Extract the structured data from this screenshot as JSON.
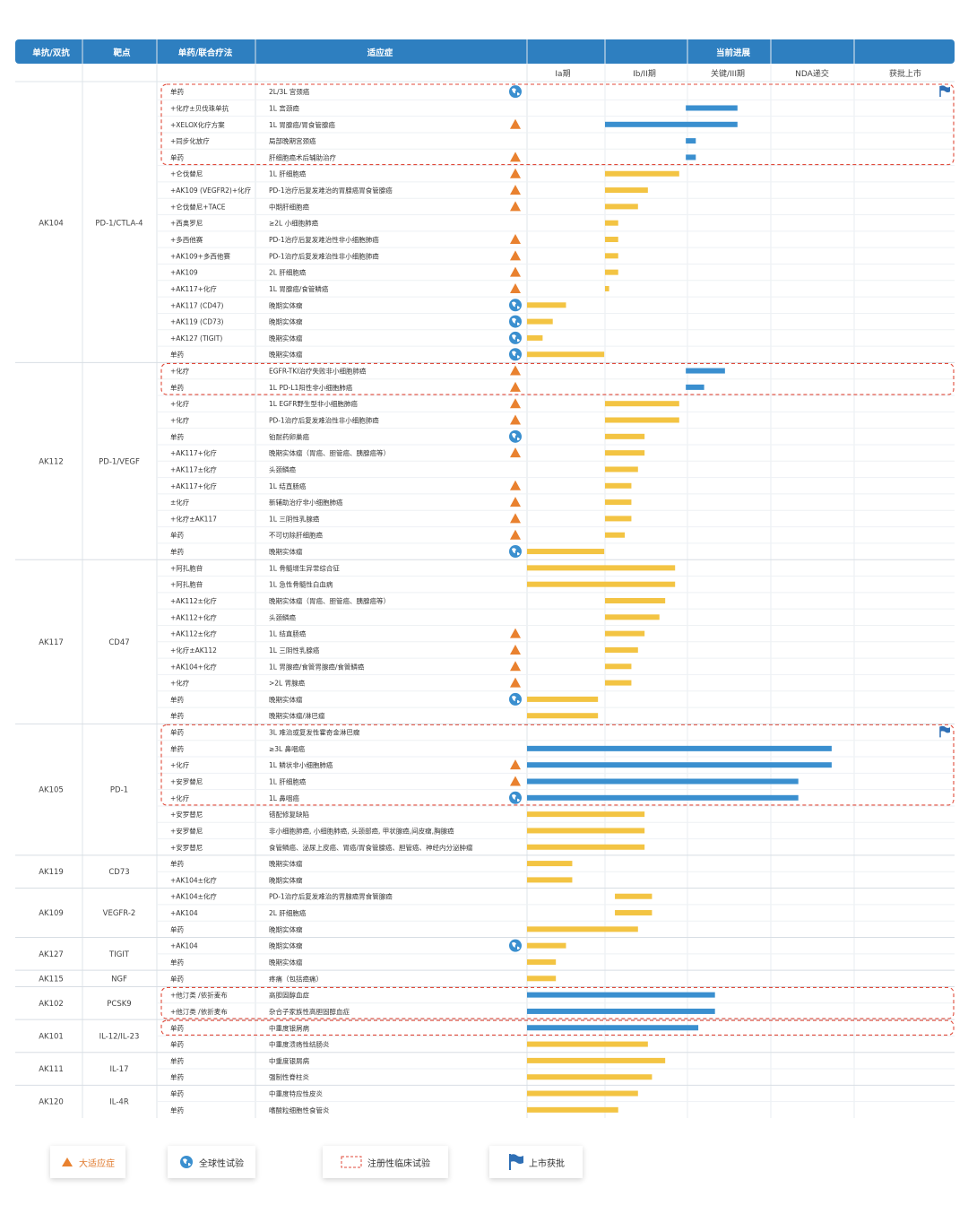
{
  "header": {
    "columns": [
      "单抗/双抗",
      "靶点",
      "单药/联合疗法",
      "适应症",
      "当前进展"
    ],
    "phases": [
      "Ia期",
      "Ib/II期",
      "关键/III期",
      "NDA递交",
      "获批上市"
    ]
  },
  "colors": {
    "header_bg": "#2e7fc0",
    "bar_blue": "#3a8fcf",
    "bar_yellow": "#f3c443",
    "triangle": "#e9812f",
    "dashed_box": "#e04a3a",
    "globe": "#3a8fcf",
    "flag": "#2f6fb5"
  },
  "legend": {
    "triangle_label": "大适应症",
    "globe_label": "全球性试验",
    "dashed_label": "注册性临床试验",
    "flag_label": "上市获批"
  },
  "groups": [
    {
      "drug": "AK104",
      "target": "PD-1/CTLA-4"
    },
    {
      "drug": "AK112",
      "target": "PD-1/VEGF"
    },
    {
      "drug": "AK117",
      "target": "CD47"
    },
    {
      "drug": "AK105",
      "target": "PD-1"
    },
    {
      "drug": "AK119",
      "target": "CD73"
    },
    {
      "drug": "AK109",
      "target": "VEGFR-2"
    },
    {
      "drug": "AK127",
      "target": "TIGIT"
    },
    {
      "drug": "AK115",
      "target": "NGF"
    },
    {
      "drug": "AK102",
      "target": "PCSK9"
    },
    {
      "drug": "AK101",
      "target": "IL-12/IL-23"
    },
    {
      "drug": "AK111",
      "target": "IL-17"
    },
    {
      "drug": "AK120",
      "target": "IL-4R"
    }
  ],
  "chart_data": {
    "type": "bar",
    "phase_scale": "0 = start of Ia期, 1 = start of Ib/II期, 2 = start of 关键/III期, 3 = start of NDA递交, 4 = start of 获批上市, 5 = end",
    "rows": [
      {
        "g": 0,
        "therapy": "单药",
        "indication": "2L/3L 宫颈癌",
        "icon": "globe",
        "flag": true,
        "color": "blue",
        "start": 0,
        "end": 0
      },
      {
        "g": 0,
        "therapy": "+化疗±贝伐珠单抗",
        "indication": "1L 宫颈癌",
        "icon": "",
        "flag": false,
        "color": "blue",
        "start": 1.98,
        "end": 2.6
      },
      {
        "g": 0,
        "therapy": "+XELOX化疗方案",
        "indication": "1L 胃腺癌/胃食管腺癌",
        "icon": "triangle",
        "flag": false,
        "color": "blue",
        "start": 1.0,
        "end": 2.6
      },
      {
        "g": 0,
        "therapy": "+同步化放疗",
        "indication": "局部晚期宫颈癌",
        "icon": "",
        "flag": false,
        "color": "blue",
        "start": 1.98,
        "end": 2.1
      },
      {
        "g": 0,
        "therapy": "单药",
        "indication": "肝细胞癌术后辅助治疗",
        "icon": "triangle",
        "flag": false,
        "color": "blue",
        "start": 1.98,
        "end": 2.1
      },
      {
        "g": 0,
        "therapy": "+仑伐替尼",
        "indication": "1L 肝细胞癌",
        "icon": "triangle",
        "flag": false,
        "color": "yellow",
        "start": 1.0,
        "end": 1.9
      },
      {
        "g": 0,
        "therapy": "+AK109 (VEGFR2)+化疗",
        "indication": "PD-1治疗后复发难治的胃腺癌胃食管腺癌",
        "icon": "triangle",
        "flag": false,
        "color": "yellow",
        "start": 1.0,
        "end": 1.52
      },
      {
        "g": 0,
        "therapy": "+仑伐替尼+TACE",
        "indication": "中期肝细胞癌",
        "icon": "triangle",
        "flag": false,
        "color": "yellow",
        "start": 1.0,
        "end": 1.4
      },
      {
        "g": 0,
        "therapy": "+西奥罗尼",
        "indication": "≥2L 小细胞肺癌",
        "icon": "",
        "flag": false,
        "color": "yellow",
        "start": 1.0,
        "end": 1.16
      },
      {
        "g": 0,
        "therapy": "+多西他赛",
        "indication": "PD-1治疗后复发难治性非小细胞肺癌",
        "icon": "triangle",
        "flag": false,
        "color": "yellow",
        "start": 1.0,
        "end": 1.16
      },
      {
        "g": 0,
        "therapy": "+AK109+多西他赛",
        "indication": "PD-1治疗后复发难治性非小细胞肺癌",
        "icon": "triangle",
        "flag": false,
        "color": "yellow",
        "start": 1.0,
        "end": 1.16
      },
      {
        "g": 0,
        "therapy": "+AK109",
        "indication": "2L 肝细胞癌",
        "icon": "triangle",
        "flag": false,
        "color": "yellow",
        "start": 1.0,
        "end": 1.16
      },
      {
        "g": 0,
        "therapy": "+AK117+化疗",
        "indication": "1L 胃腺癌/食管鳞癌",
        "icon": "triangle",
        "flag": false,
        "color": "yellow",
        "start": 1.0,
        "end": 1.05
      },
      {
        "g": 0,
        "therapy": "+AK117 (CD47)",
        "indication": "晚期实体瘤",
        "icon": "globe",
        "flag": false,
        "color": "yellow",
        "start": 0,
        "end": 0.5
      },
      {
        "g": 0,
        "therapy": "+AK119 (CD73)",
        "indication": "晚期实体瘤",
        "icon": "globe",
        "flag": false,
        "color": "yellow",
        "start": 0,
        "end": 0.33
      },
      {
        "g": 0,
        "therapy": "+AK127 (TIGIT)",
        "indication": "晚期实体瘤",
        "icon": "globe",
        "flag": false,
        "color": "yellow",
        "start": 0,
        "end": 0.2
      },
      {
        "g": 0,
        "therapy": "单药",
        "indication": "晚期实体瘤",
        "icon": "globe",
        "flag": false,
        "color": "yellow",
        "start": 0,
        "end": 0.99
      },
      {
        "g": 1,
        "therapy": "+化疗",
        "indication": "EGFR-TKI治疗失败非小细胞肺癌",
        "icon": "triangle",
        "flag": false,
        "color": "blue",
        "start": 1.98,
        "end": 2.45
      },
      {
        "g": 1,
        "therapy": "单药",
        "indication": "1L PD-L1阳性非小细胞肺癌",
        "icon": "triangle",
        "flag": false,
        "color": "blue",
        "start": 1.98,
        "end": 2.2
      },
      {
        "g": 1,
        "therapy": "+化疗",
        "indication": "1L EGFR野生型非小细胞肺癌",
        "icon": "triangle",
        "flag": false,
        "color": "yellow",
        "start": 1.0,
        "end": 1.9
      },
      {
        "g": 1,
        "therapy": "+化疗",
        "indication": "PD-1治疗后复发难治性非小细胞肺癌",
        "icon": "triangle",
        "flag": false,
        "color": "yellow",
        "start": 1.0,
        "end": 1.9
      },
      {
        "g": 1,
        "therapy": "单药",
        "indication": "铂耐药卵巢癌",
        "icon": "globe",
        "flag": false,
        "color": "yellow",
        "start": 1.0,
        "end": 1.48
      },
      {
        "g": 1,
        "therapy": "+AK117+化疗",
        "indication": "晚期实体瘤（胃癌、胆管癌、胰腺癌等）",
        "icon": "triangle",
        "flag": false,
        "color": "yellow",
        "start": 1.0,
        "end": 1.48
      },
      {
        "g": 1,
        "therapy": "+AK117±化疗",
        "indication": "头颈鳞癌",
        "icon": "",
        "flag": false,
        "color": "yellow",
        "start": 1.0,
        "end": 1.4
      },
      {
        "g": 1,
        "therapy": "+AK117+化疗",
        "indication": "1L 结直肠癌",
        "icon": "triangle",
        "flag": false,
        "color": "yellow",
        "start": 1.0,
        "end": 1.32
      },
      {
        "g": 1,
        "therapy": "±化疗",
        "indication": "新辅助治疗非小细胞肺癌",
        "icon": "triangle",
        "flag": false,
        "color": "yellow",
        "start": 1.0,
        "end": 1.32
      },
      {
        "g": 1,
        "therapy": "+化疗±AK117",
        "indication": "1L 三阴性乳腺癌",
        "icon": "triangle",
        "flag": false,
        "color": "yellow",
        "start": 1.0,
        "end": 1.32
      },
      {
        "g": 1,
        "therapy": "单药",
        "indication": "不可切除肝细胞癌",
        "icon": "triangle",
        "flag": false,
        "color": "yellow",
        "start": 1.0,
        "end": 1.24
      },
      {
        "g": 1,
        "therapy": "单药",
        "indication": "晚期实体瘤",
        "icon": "globe",
        "flag": false,
        "color": "yellow",
        "start": 0,
        "end": 0.99
      },
      {
        "g": 2,
        "therapy": "+阿扎胞苷",
        "indication": "1L 骨髓增生异常综合征",
        "icon": "",
        "flag": false,
        "color": "yellow",
        "start": 0,
        "end": 1.85
      },
      {
        "g": 2,
        "therapy": "+阿扎胞苷",
        "indication": "1L 急性骨髓性白血病",
        "icon": "",
        "flag": false,
        "color": "yellow",
        "start": 0,
        "end": 1.85
      },
      {
        "g": 2,
        "therapy": "+AK112±化疗",
        "indication": "晚期实体瘤（胃癌、胆管癌、胰腺癌等）",
        "icon": "",
        "flag": false,
        "color": "yellow",
        "start": 1.0,
        "end": 1.73
      },
      {
        "g": 2,
        "therapy": "+AK112+化疗",
        "indication": "头颈鳞癌",
        "icon": "",
        "flag": false,
        "color": "yellow",
        "start": 1.0,
        "end": 1.66
      },
      {
        "g": 2,
        "therapy": "+AK112±化疗",
        "indication": "1L 结直肠癌",
        "icon": "triangle",
        "flag": false,
        "color": "yellow",
        "start": 1.0,
        "end": 1.48
      },
      {
        "g": 2,
        "therapy": "+化疗±AK112",
        "indication": "1L 三阴性乳腺癌",
        "icon": "triangle",
        "flag": false,
        "color": "yellow",
        "start": 1.0,
        "end": 1.4
      },
      {
        "g": 2,
        "therapy": "+AK104+化疗",
        "indication": "1L 胃腺癌/食管胃腺癌/食管鳞癌",
        "icon": "triangle",
        "flag": false,
        "color": "yellow",
        "start": 1.0,
        "end": 1.32
      },
      {
        "g": 2,
        "therapy": "+化疗",
        "indication": ">2L 胃腺癌",
        "icon": "triangle",
        "flag": false,
        "color": "yellow",
        "start": 1.0,
        "end": 1.32
      },
      {
        "g": 2,
        "therapy": "单药",
        "indication": "晚期实体瘤",
        "icon": "globe",
        "flag": false,
        "color": "yellow",
        "start": 0,
        "end": 0.91
      },
      {
        "g": 2,
        "therapy": "单药",
        "indication": "晚期实体瘤/淋巴瘤",
        "icon": "",
        "flag": false,
        "color": "yellow",
        "start": 0,
        "end": 0.91
      },
      {
        "g": 3,
        "therapy": "单药",
        "indication": "3L 难治或复发性霍奇金淋巴瘤",
        "icon": "",
        "flag": true,
        "color": "blue",
        "start": 0,
        "end": 0
      },
      {
        "g": 3,
        "therapy": "单药",
        "indication": "≥3L 鼻咽癌",
        "icon": "",
        "flag": false,
        "color": "blue",
        "start": 0,
        "end": 3.73
      },
      {
        "g": 3,
        "therapy": "+化疗",
        "indication": "1L 鳞状非小细胞肺癌",
        "icon": "triangle",
        "flag": false,
        "color": "blue",
        "start": 0,
        "end": 3.73
      },
      {
        "g": 3,
        "therapy": "+安罗替尼",
        "indication": "1L 肝细胞癌",
        "icon": "triangle",
        "flag": false,
        "color": "blue",
        "start": 0,
        "end": 3.33
      },
      {
        "g": 3,
        "therapy": "+化疗",
        "indication": "1L 鼻咽癌",
        "icon": "globe",
        "flag": false,
        "color": "blue",
        "start": 0,
        "end": 3.33
      },
      {
        "g": 3,
        "therapy": "+安罗替尼",
        "indication": "错配修复缺陷",
        "icon": "",
        "flag": false,
        "color": "yellow",
        "start": 0,
        "end": 1.48
      },
      {
        "g": 3,
        "therapy": "+安罗替尼",
        "indication": "非小细胞肺癌, 小细胞肺癌, 头颈部癌, 甲状腺癌,间皮瘤,胸腺癌",
        "icon": "",
        "flag": false,
        "color": "yellow",
        "start": 0,
        "end": 1.48
      },
      {
        "g": 3,
        "therapy": "+安罗替尼",
        "indication": "食管鳞癌、泌尿上皮癌、胃癌/胃食管腺癌、胆管癌、神经内分泌肿瘤",
        "icon": "",
        "flag": false,
        "color": "yellow",
        "start": 0,
        "end": 1.48
      },
      {
        "g": 4,
        "therapy": "单药",
        "indication": "晚期实体瘤",
        "icon": "",
        "flag": false,
        "color": "yellow",
        "start": 0,
        "end": 0.58
      },
      {
        "g": 4,
        "therapy": "+AK104±化疗",
        "indication": "晚期实体瘤",
        "icon": "",
        "flag": false,
        "color": "yellow",
        "start": 0,
        "end": 0.58
      },
      {
        "g": 5,
        "therapy": "+AK104±化疗",
        "indication": "PD-1治疗后复发难治的胃腺癌胃食管腺癌",
        "icon": "",
        "flag": false,
        "color": "yellow",
        "start": 1.12,
        "end": 1.57
      },
      {
        "g": 5,
        "therapy": "+AK104",
        "indication": "2L 肝细胞癌",
        "icon": "",
        "flag": false,
        "color": "yellow",
        "start": 1.12,
        "end": 1.57
      },
      {
        "g": 5,
        "therapy": "单药",
        "indication": "晚期实体瘤",
        "icon": "",
        "flag": false,
        "color": "yellow",
        "start": 0,
        "end": 1.4
      },
      {
        "g": 6,
        "therapy": "+AK104",
        "indication": "晚期实体瘤",
        "icon": "globe",
        "flag": false,
        "color": "yellow",
        "start": 0,
        "end": 0.5
      },
      {
        "g": 6,
        "therapy": "单药",
        "indication": "晚期实体瘤",
        "icon": "",
        "flag": false,
        "color": "yellow",
        "start": 0,
        "end": 0.37
      },
      {
        "g": 7,
        "therapy": "单药",
        "indication": "疼痛（包括癌痛）",
        "icon": "",
        "flag": false,
        "color": "yellow",
        "start": 0,
        "end": 0.37
      },
      {
        "g": 8,
        "therapy": "+他汀类 /依折麦布",
        "indication": "高胆固醇血症",
        "icon": "",
        "flag": false,
        "color": "blue",
        "start": 0,
        "end": 2.33
      },
      {
        "g": 8,
        "therapy": "+他汀类 /依折麦布",
        "indication": "杂合子家族性高胆固醇血症",
        "icon": "",
        "flag": false,
        "color": "blue",
        "start": 0,
        "end": 2.33
      },
      {
        "g": 9,
        "therapy": "单药",
        "indication": "中重度银屑病",
        "icon": "",
        "flag": false,
        "color": "blue",
        "start": 0,
        "end": 2.13
      },
      {
        "g": 9,
        "therapy": "单药",
        "indication": "中重度溃疡性结肠炎",
        "icon": "",
        "flag": false,
        "color": "yellow",
        "start": 0,
        "end": 1.52
      },
      {
        "g": 10,
        "therapy": "单药",
        "indication": "中重度银屑病",
        "icon": "",
        "flag": false,
        "color": "yellow",
        "start": 0,
        "end": 1.73
      },
      {
        "g": 10,
        "therapy": "单药",
        "indication": "强制性脊柱炎",
        "icon": "",
        "flag": false,
        "color": "yellow",
        "start": 0,
        "end": 1.57
      },
      {
        "g": 11,
        "therapy": "单药",
        "indication": "中重度特应性皮炎",
        "icon": "",
        "flag": false,
        "color": "yellow",
        "start": 0,
        "end": 1.4
      },
      {
        "g": 11,
        "therapy": "单药",
        "indication": "嗜酸粒细胞性食管炎",
        "icon": "",
        "flag": false,
        "color": "yellow",
        "start": 0,
        "end": 1.16
      }
    ],
    "registration_boxes": [
      [
        0,
        4
      ],
      [
        17,
        18
      ],
      [
        39,
        43
      ],
      [
        55,
        56
      ],
      [
        57,
        57
      ]
    ]
  }
}
